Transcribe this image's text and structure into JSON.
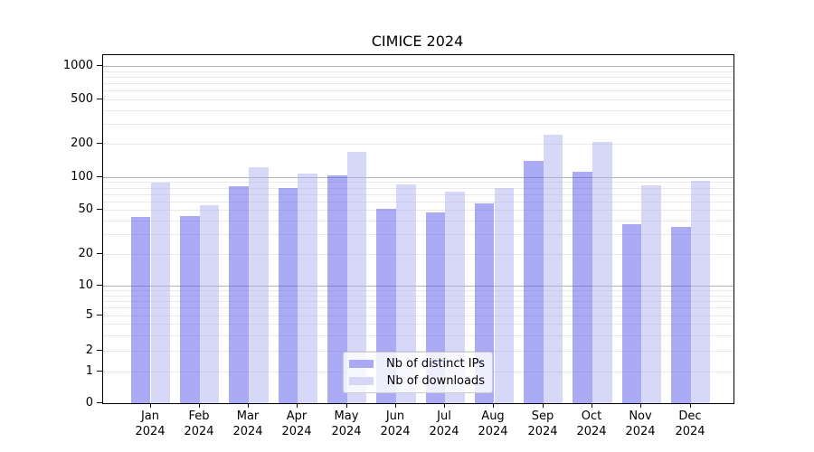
{
  "title": "CIMICE 2024",
  "chart_data": {
    "type": "bar",
    "title": "CIMICE 2024",
    "yscale": "symlog",
    "grid": true,
    "legend_position": "lower center",
    "months": [
      {
        "label": "Jan",
        "year": "2024"
      },
      {
        "label": "Feb",
        "year": "2024"
      },
      {
        "label": "Mar",
        "year": "2024"
      },
      {
        "label": "Apr",
        "year": "2024"
      },
      {
        "label": "May",
        "year": "2024"
      },
      {
        "label": "Jun",
        "year": "2024"
      },
      {
        "label": "Jul",
        "year": "2024"
      },
      {
        "label": "Aug",
        "year": "2024"
      },
      {
        "label": "Sep",
        "year": "2024"
      },
      {
        "label": "Oct",
        "year": "2024"
      },
      {
        "label": "Nov",
        "year": "2024"
      },
      {
        "label": "Dec",
        "year": "2024"
      }
    ],
    "series": [
      {
        "name": "Nb of distinct IPs",
        "color": "rgba(85,85,235,0.5)",
        "legend_color": "#a9a9f4",
        "values": [
          43,
          44,
          82,
          79,
          104,
          51,
          47,
          57,
          140,
          111,
          37,
          35
        ]
      },
      {
        "name": "Nb of downloads",
        "color": "rgba(175,175,239,0.5)",
        "legend_color": "#d6d6f7",
        "values": [
          89,
          55,
          122,
          108,
          170,
          85,
          73,
          79,
          240,
          206,
          84,
          92
        ]
      }
    ],
    "y_ticks": [
      1000,
      500,
      200,
      100,
      50,
      20,
      10,
      5,
      2,
      1,
      0
    ],
    "y_tick_labels": [
      "1000",
      "500",
      "200",
      "100",
      "50",
      "20",
      "10",
      "5",
      "2",
      "1",
      "0"
    ],
    "ylim": [
      0,
      1400
    ]
  }
}
